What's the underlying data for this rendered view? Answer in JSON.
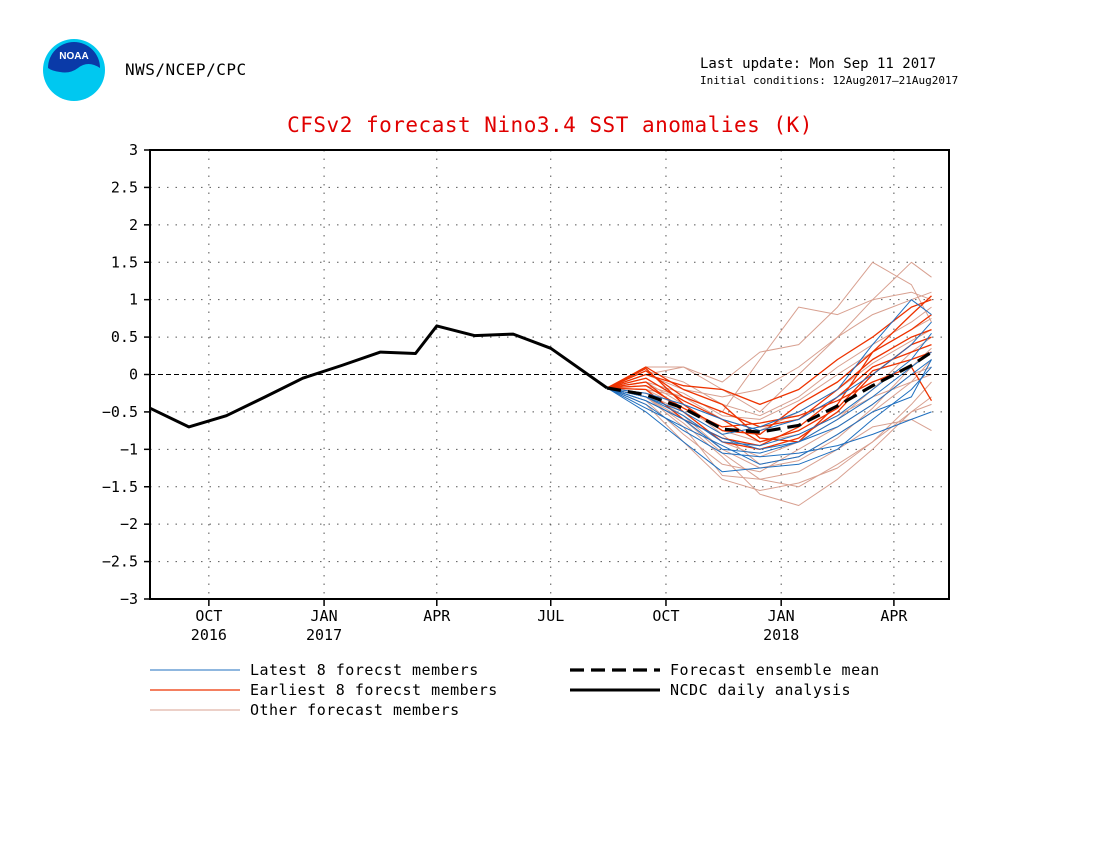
{
  "header": {
    "agency": "NWS/NCEP/CPC",
    "last_update": "Last update: Mon Sep 11 2017",
    "initial_conditions": "Initial conditions: 12Aug2017–21Aug2017",
    "logo_text": "NOAA",
    "logo_colors": {
      "outer": "#00c8f0",
      "inner": "#0a3aa8",
      "text": "#ffffff"
    }
  },
  "chart_data": {
    "type": "line",
    "title": "CFSv2 forecast Nino3.4 SST anomalies (K)",
    "ylim": [
      -3,
      3
    ],
    "y_ticks": [
      {
        "v": 3,
        "label": "3"
      },
      {
        "v": 2.5,
        "label": "2.5"
      },
      {
        "v": 2,
        "label": "2"
      },
      {
        "v": 1.5,
        "label": "1.5"
      },
      {
        "v": 1,
        "label": "1"
      },
      {
        "v": 0.5,
        "label": "0.5"
      },
      {
        "v": 0,
        "label": "0"
      },
      {
        "v": -0.5,
        "label": "−0.5"
      },
      {
        "v": -1,
        "label": "−1"
      },
      {
        "v": -1.5,
        "label": "−1.5"
      },
      {
        "v": -2,
        "label": "−2"
      },
      {
        "v": -2.5,
        "label": "−2.5"
      },
      {
        "v": -3,
        "label": "−3"
      }
    ],
    "xlim": [
      "2016-08-15",
      "2018-05-15"
    ],
    "x_ticks": [
      {
        "date": "2016-10-01",
        "label": "OCT",
        "year": "2016"
      },
      {
        "date": "2017-01-01",
        "label": "JAN",
        "year": "2017"
      },
      {
        "date": "2017-04-01",
        "label": "APR",
        "year": ""
      },
      {
        "date": "2017-07-01",
        "label": "JUL",
        "year": ""
      },
      {
        "date": "2017-10-01",
        "label": "OCT",
        "year": ""
      },
      {
        "date": "2018-01-01",
        "label": "JAN",
        "year": "2018"
      },
      {
        "date": "2018-04-01",
        "label": "APR",
        "year": ""
      }
    ],
    "grid": true,
    "zero_line": true,
    "colors": {
      "latest": "#1f6fbf",
      "earliest": "#ee3300",
      "other": "#d8a090",
      "mean": "#000000",
      "analysis": "#000000"
    },
    "analysis": {
      "name": "NCDC daily analysis",
      "points": [
        {
          "x": "2016-08-15",
          "y": -0.45
        },
        {
          "x": "2016-09-15",
          "y": -0.7
        },
        {
          "x": "2016-10-15",
          "y": -0.55
        },
        {
          "x": "2016-11-15",
          "y": -0.3
        },
        {
          "x": "2016-12-15",
          "y": -0.05
        },
        {
          "x": "2017-01-15",
          "y": 0.12
        },
        {
          "x": "2017-02-15",
          "y": 0.3
        },
        {
          "x": "2017-03-15",
          "y": 0.28
        },
        {
          "x": "2017-04-01",
          "y": 0.65
        },
        {
          "x": "2017-05-01",
          "y": 0.52
        },
        {
          "x": "2017-06-01",
          "y": 0.54
        },
        {
          "x": "2017-07-01",
          "y": 0.35
        },
        {
          "x": "2017-08-15",
          "y": -0.18
        }
      ]
    },
    "forecast_x": [
      "2017-08-15",
      "2017-09-15",
      "2017-10-15",
      "2017-11-15",
      "2017-12-15",
      "2018-01-15",
      "2018-02-15",
      "2018-03-15",
      "2018-04-15",
      "2018-05-01"
    ],
    "ensemble_mean": {
      "name": "Forecast ensemble mean",
      "values": [
        -0.18,
        -0.27,
        -0.45,
        -0.73,
        -0.77,
        -0.68,
        -0.42,
        -0.15,
        0.12,
        0.3
      ]
    },
    "latest_members": {
      "name": "Latest 8 forecst members",
      "values": [
        [
          -0.18,
          -0.5,
          -0.9,
          -1.3,
          -1.25,
          -1.2,
          -1.0,
          -0.6,
          -0.2,
          0.1
        ],
        [
          -0.18,
          -0.35,
          -0.6,
          -0.85,
          -1.0,
          -0.9,
          -0.6,
          -0.3,
          0.1,
          0.3
        ],
        [
          -0.18,
          -0.3,
          -0.5,
          -0.8,
          -0.7,
          -0.5,
          -0.2,
          0.4,
          1.0,
          0.8
        ],
        [
          -0.18,
          -0.4,
          -0.75,
          -1.05,
          -1.1,
          -1.05,
          -0.95,
          -0.8,
          -0.6,
          -0.5
        ],
        [
          -0.18,
          -0.45,
          -0.7,
          -0.95,
          -1.2,
          -1.1,
          -0.8,
          -0.5,
          -0.3,
          0.2
        ],
        [
          -0.18,
          -0.25,
          -0.4,
          -0.6,
          -0.75,
          -0.6,
          -0.3,
          0.0,
          0.4,
          0.7
        ],
        [
          -0.18,
          -0.3,
          -0.55,
          -0.9,
          -0.95,
          -0.8,
          -0.55,
          -0.2,
          0.2,
          0.55
        ],
        [
          -0.18,
          -0.35,
          -0.6,
          -1.0,
          -1.05,
          -0.9,
          -0.7,
          -0.4,
          0.0,
          0.2
        ]
      ]
    },
    "earliest_members": {
      "name": "Earliest 8 forecst members",
      "values": [
        [
          -0.18,
          0.1,
          -0.2,
          -0.4,
          -0.85,
          -0.9,
          -0.4,
          0.3,
          0.8,
          1.05
        ],
        [
          -0.18,
          0.05,
          -0.3,
          -0.5,
          -0.7,
          -0.6,
          -0.2,
          0.2,
          0.5,
          0.6
        ],
        [
          -0.18,
          -0.1,
          -0.5,
          -0.9,
          -1.0,
          -0.85,
          -0.5,
          0.0,
          0.4,
          0.5
        ],
        [
          -0.18,
          0.0,
          -0.15,
          -0.2,
          -0.4,
          -0.2,
          0.2,
          0.5,
          0.9,
          1.0
        ],
        [
          -0.18,
          -0.2,
          -0.6,
          -0.85,
          -0.95,
          -0.7,
          -0.3,
          0.1,
          0.3,
          0.4
        ],
        [
          -0.18,
          0.08,
          -0.4,
          -0.75,
          -0.8,
          -0.4,
          -0.1,
          0.3,
          0.6,
          0.8
        ],
        [
          -0.18,
          -0.15,
          -0.45,
          -0.7,
          -0.65,
          -0.55,
          -0.35,
          -0.1,
          0.1,
          -0.35
        ],
        [
          -0.18,
          -0.05,
          -0.35,
          -0.6,
          -0.9,
          -0.75,
          -0.45,
          0.05,
          0.2,
          0.3
        ]
      ]
    },
    "other_members": {
      "name": "Other forecast members",
      "values": [
        [
          -0.18,
          0.1,
          0.1,
          -0.2,
          -0.5,
          0.0,
          0.5,
          1.0,
          1.1,
          1.0
        ],
        [
          -0.18,
          -0.3,
          -0.7,
          -1.35,
          -1.4,
          -1.3,
          -1.0,
          -0.7,
          -0.6,
          -0.75
        ],
        [
          -0.18,
          -0.4,
          -0.9,
          -1.4,
          -1.55,
          -1.45,
          -1.25,
          -0.9,
          -0.4,
          -0.1
        ],
        [
          -0.18,
          -0.2,
          -0.3,
          -0.5,
          0.2,
          0.9,
          0.8,
          1.0,
          1.5,
          1.3
        ],
        [
          -0.18,
          0.0,
          0.1,
          -0.1,
          0.3,
          0.4,
          0.9,
          1.5,
          1.2,
          0.7
        ],
        [
          -0.18,
          -0.1,
          -0.4,
          -0.8,
          -1.2,
          -1.1,
          -0.8,
          -0.5,
          -0.1,
          0.2
        ],
        [
          -0.18,
          -0.3,
          -0.6,
          -1.05,
          -1.4,
          -1.5,
          -1.2,
          -0.9,
          -0.5,
          -0.3
        ],
        [
          -0.18,
          -0.25,
          -0.5,
          -0.9,
          -1.1,
          -0.9,
          -0.6,
          -0.2,
          0.3,
          0.5
        ],
        [
          -0.18,
          0.05,
          -0.1,
          -0.4,
          -0.55,
          -0.3,
          0.1,
          0.4,
          0.7,
          0.9
        ],
        [
          -0.18,
          -0.35,
          -0.8,
          -1.2,
          -1.3,
          -1.0,
          -0.7,
          -0.4,
          0.0,
          0.1
        ],
        [
          -0.18,
          -0.15,
          -0.3,
          -0.6,
          -0.75,
          -0.5,
          -0.2,
          0.15,
          0.45,
          0.6
        ],
        [
          -0.18,
          -0.2,
          -0.45,
          -0.75,
          -0.9,
          -0.8,
          -0.55,
          -0.3,
          -0.1,
          0.0
        ],
        [
          -0.18,
          0.0,
          -0.2,
          -0.3,
          -0.2,
          0.1,
          0.5,
          0.8,
          1.0,
          1.1
        ],
        [
          -0.18,
          -0.3,
          -0.65,
          -1.1,
          -1.6,
          -1.75,
          -1.4,
          -1.0,
          -0.5,
          -0.4
        ],
        [
          -0.18,
          -0.1,
          -0.25,
          -0.55,
          -0.6,
          -0.35,
          0.0,
          0.3,
          0.6,
          0.75
        ],
        [
          -0.18,
          -0.25,
          -0.55,
          -1.0,
          -1.25,
          -1.15,
          -0.85,
          -0.45,
          0.1,
          0.35
        ]
      ]
    }
  }
}
